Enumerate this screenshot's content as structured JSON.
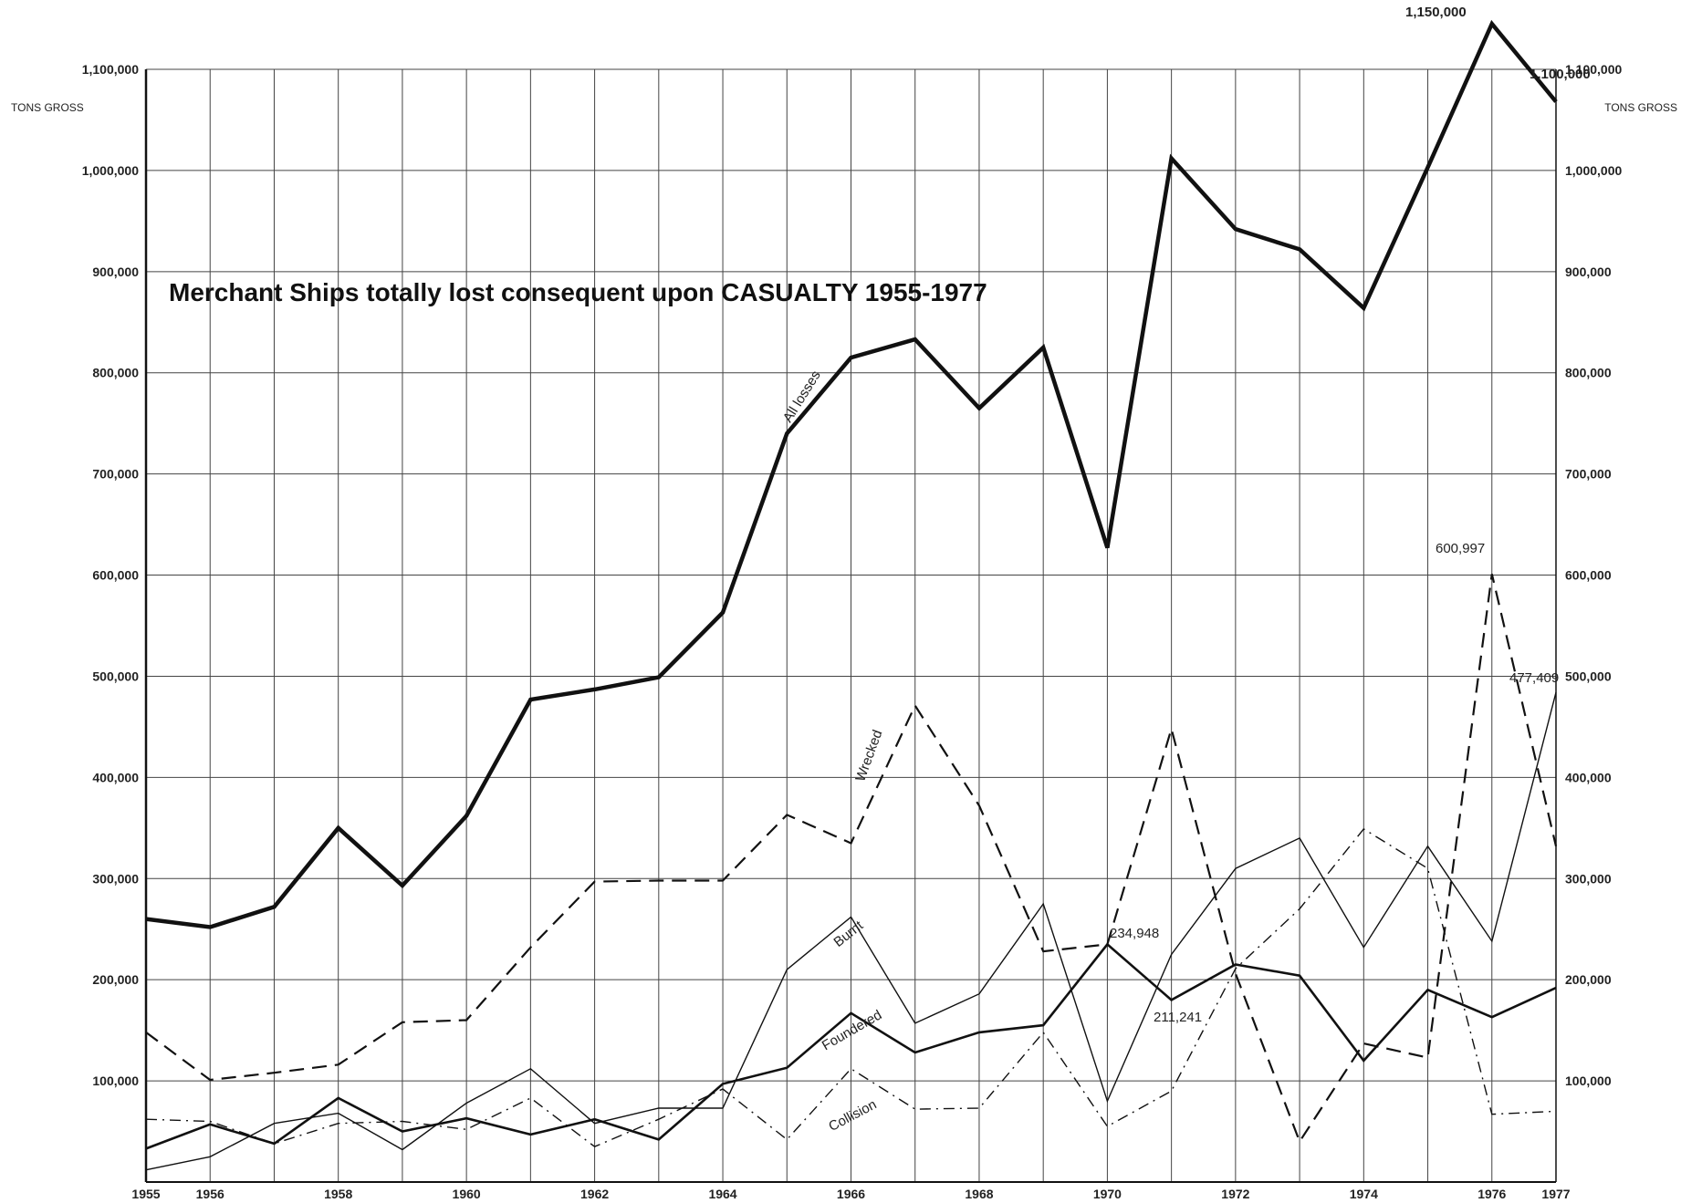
{
  "chart_data": {
    "type": "line",
    "title": "Merchant Ships totally lost consequent upon CASUALTY 1955-1977",
    "ylabel_left": "TONS GROSS",
    "ylabel_right": "TONS GROSS",
    "x": [
      1955,
      1956,
      1957,
      1958,
      1959,
      1960,
      1961,
      1962,
      1963,
      1964,
      1965,
      1966,
      1967,
      1968,
      1969,
      1970,
      1971,
      1972,
      1973,
      1974,
      1975,
      1976,
      1977
    ],
    "x_tick_labels": [
      "1955",
      "1956",
      "1958",
      "1960",
      "1962",
      "1964",
      "1966",
      "1968",
      "1970",
      "1972",
      "1974",
      "1976",
      "1977"
    ],
    "x_tick_values": [
      1955,
      1956,
      1958,
      1960,
      1962,
      1964,
      1966,
      1968,
      1970,
      1972,
      1974,
      1976,
      1977
    ],
    "y_tick_labels": [
      "100,000",
      "200,000",
      "300,000",
      "400,000",
      "500,000",
      "600,000",
      "700,000",
      "800,000",
      "900,000",
      "1,000,000",
      "1,100,000"
    ],
    "y_tick_values": [
      100000,
      200000,
      300000,
      400000,
      500000,
      600000,
      700000,
      800000,
      900000,
      1000000,
      1100000
    ],
    "ylim": [
      0,
      1100000
    ],
    "grid": true,
    "series": [
      {
        "name": "All losses",
        "style": "thick",
        "color": "#111111",
        "values": [
          260000,
          252000,
          272000,
          350000,
          293000,
          362000,
          477000,
          487000,
          499000,
          563000,
          740000,
          815000,
          833000,
          765000,
          825000,
          627000,
          1012000,
          942000,
          922000,
          864000,
          1003000,
          1145000,
          1068000
        ]
      },
      {
        "name": "Wrecked",
        "style": "dashed",
        "color": "#111111",
        "values": [
          148000,
          101000,
          108000,
          116000,
          158000,
          160000,
          232000,
          297000,
          298000,
          298000,
          363000,
          335000,
          471000,
          372000,
          228000,
          235000,
          448000,
          206000,
          40000,
          137000,
          123000,
          601000,
          332000
        ]
      },
      {
        "name": "Burnt",
        "style": "thin",
        "color": "#111111",
        "values": [
          12000,
          25000,
          58000,
          68000,
          32000,
          78000,
          112000,
          58000,
          73000,
          73000,
          210000,
          262000,
          157000,
          186000,
          275000,
          80000,
          225000,
          310000,
          340000,
          232000,
          332000,
          238000,
          484000
        ]
      },
      {
        "name": "Foundered",
        "style": "medium",
        "color": "#111111",
        "values": [
          33000,
          57000,
          38000,
          83000,
          50000,
          63000,
          47000,
          62000,
          42000,
          97000,
          113000,
          167000,
          128000,
          148000,
          155000,
          235000,
          180000,
          215000,
          204000,
          120000,
          190000,
          163000,
          192000
        ]
      },
      {
        "name": "Collision",
        "style": "dashdot",
        "color": "#111111",
        "values": [
          62000,
          60000,
          38000,
          58000,
          60000,
          52000,
          83000,
          35000,
          62000,
          92000,
          42000,
          112000,
          72000,
          73000,
          148000,
          55000,
          90000,
          211000,
          270000,
          349000,
          310000,
          67000,
          70000
        ]
      }
    ],
    "annotations": [
      "1,150,000",
      "1,100,000",
      "600,997",
      "477,409",
      "234,948",
      "211,241"
    ]
  }
}
